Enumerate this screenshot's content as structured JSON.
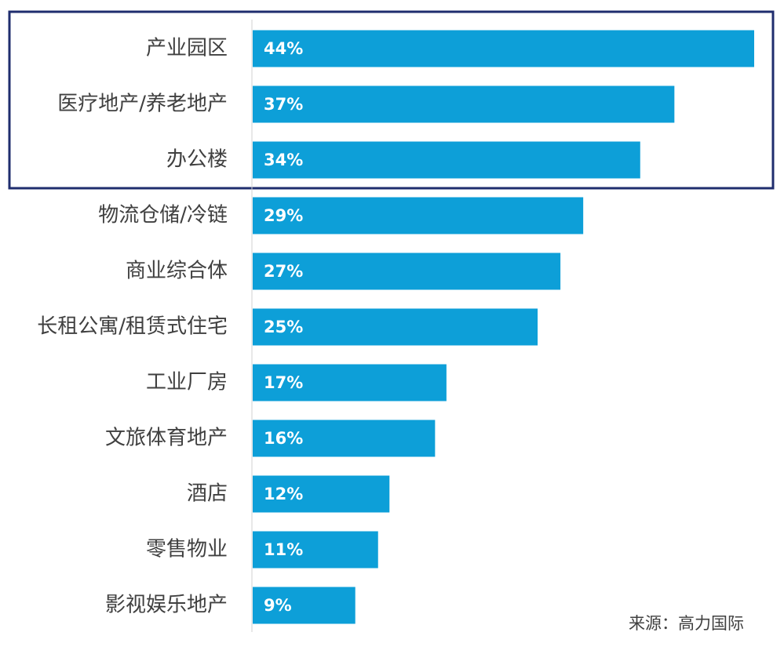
{
  "chart_data": {
    "type": "bar",
    "orientation": "horizontal",
    "categories": [
      "产业园区",
      "医疗地产/养老地产",
      "办公楼",
      "物流仓储/冷链",
      "商业综合体",
      "长租公寓/租赁式住宅",
      "工业厂房",
      "文旅体育地产",
      "酒店",
      "零售物业",
      "影视娱乐地产"
    ],
    "values": [
      44,
      37,
      34,
      29,
      27,
      25,
      17,
      16,
      12,
      11,
      9
    ],
    "value_labels": [
      "44%",
      "37%",
      "34%",
      "29%",
      "27%",
      "25%",
      "17%",
      "16%",
      "12%",
      "11%",
      "9%"
    ],
    "color": "#0d9fd8",
    "xlim": [
      0,
      44
    ],
    "source": "来源：高力国际"
  }
}
